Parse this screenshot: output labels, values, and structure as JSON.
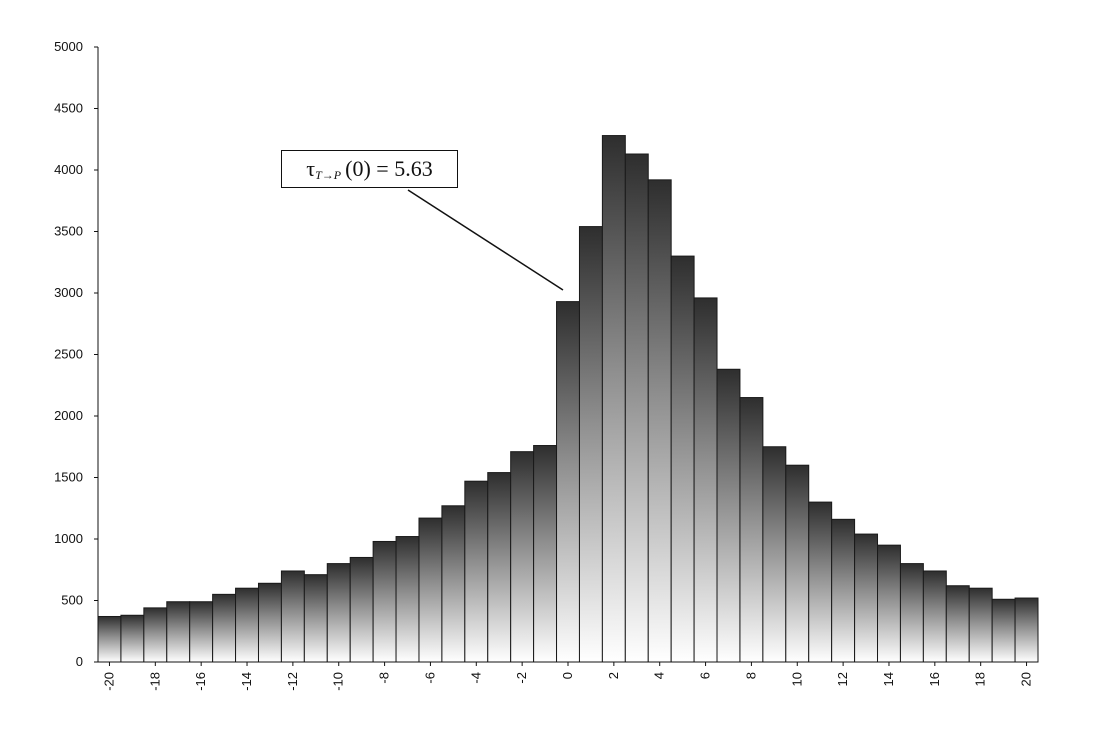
{
  "chart_data": {
    "type": "bar",
    "title": "",
    "xlabel": "",
    "ylabel": "",
    "x": [
      -20,
      -19,
      -18,
      -17,
      -16,
      -15,
      -14,
      -13,
      -12,
      -11,
      -10,
      -9,
      -8,
      -7,
      -6,
      -5,
      -4,
      -3,
      -2,
      -1,
      0,
      1,
      2,
      3,
      4,
      5,
      6,
      7,
      8,
      9,
      10,
      11,
      12,
      13,
      14,
      15,
      16,
      17,
      18,
      19,
      20
    ],
    "values": [
      370,
      380,
      440,
      490,
      490,
      550,
      600,
      640,
      740,
      710,
      800,
      850,
      980,
      1020,
      1170,
      1270,
      1470,
      1540,
      1710,
      1760,
      2930,
      3540,
      4280,
      4130,
      3920,
      3300,
      2960,
      2380,
      2150,
      1750,
      1600,
      1300,
      1160,
      1040,
      950,
      800,
      740,
      620,
      600,
      510,
      520
    ],
    "ylim": [
      0,
      5000
    ],
    "yticks": [
      0,
      500,
      1000,
      1500,
      2000,
      2500,
      3000,
      3500,
      4000,
      4500,
      5000
    ],
    "xticks": [
      -20,
      -18,
      -16,
      -14,
      -12,
      -10,
      -8,
      -6,
      -4,
      -2,
      0,
      2,
      4,
      6,
      8,
      10,
      12,
      14,
      16,
      18,
      20
    ],
    "xtick_labels": [
      "-20",
      "-18",
      "-16",
      "-14",
      "-12",
      "-10",
      "-8",
      "-6",
      "-4",
      "-2",
      "0",
      "2",
      "4",
      "6",
      "8",
      "10",
      "12",
      "14",
      "16",
      "18",
      "20"
    ],
    "grid": false,
    "legend": "none",
    "bar_fill": "vertical gradient dark gray top to white bottom",
    "annotation": {
      "symbol": "τ",
      "subscript": "T→P",
      "text": "(0) = 5.63",
      "points_to_x": 0
    }
  }
}
